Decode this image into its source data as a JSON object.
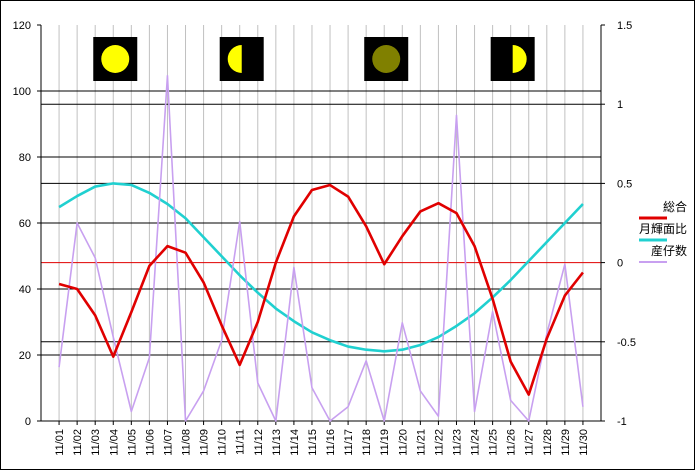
{
  "chart_data": {
    "type": "line",
    "categories": [
      "11/01",
      "11/02",
      "11/03",
      "11/04",
      "11/05",
      "11/06",
      "11/07",
      "11/08",
      "11/09",
      "11/10",
      "11/11",
      "11/12",
      "11/13",
      "11/14",
      "11/15",
      "11/16",
      "11/17",
      "11/18",
      "11/19",
      "11/20",
      "11/21",
      "11/22",
      "11/23",
      "11/24",
      "11/25",
      "11/26",
      "11/27",
      "11/28",
      "11/29",
      "11/30"
    ],
    "y_left": {
      "min": 0,
      "max": 120,
      "ticks": [
        0,
        20,
        40,
        60,
        80,
        100,
        120
      ]
    },
    "y_right": {
      "min": -1,
      "max": 1.5,
      "ticks": [
        -1,
        -0.5,
        0,
        0.5,
        1,
        1.5
      ],
      "tick_labels": [
        "-1",
        "-0.5",
        "0",
        "0.5",
        "1",
        "1.5"
      ]
    },
    "series": [
      {
        "name": "総合",
        "axis": "left",
        "color": "#e00000",
        "values": [
          41.5,
          40,
          32,
          19.5,
          33,
          47,
          53,
          51,
          42,
          29,
          17,
          30,
          48,
          62,
          70,
          71.5,
          68,
          59,
          47.5,
          56,
          63.5,
          66,
          63,
          53,
          37,
          18,
          8,
          25,
          38,
          45
        ]
      },
      {
        "name": "月輝面比",
        "axis": "right",
        "color": "#20d0d0",
        "values": [
          0.35,
          0.42,
          0.48,
          0.5,
          0.49,
          0.44,
          0.37,
          0.28,
          0.16,
          0.04,
          -0.08,
          -0.19,
          -0.29,
          -0.37,
          -0.44,
          -0.49,
          -0.53,
          -0.55,
          -0.56,
          -0.55,
          -0.52,
          -0.47,
          -0.4,
          -0.32,
          -0.22,
          -0.11,
          0.01,
          0.13,
          0.25,
          0.37
        ]
      },
      {
        "name": "産仔数",
        "axis": "right",
        "color": "#c8a0f0",
        "values": [
          -0.66,
          0.25,
          0.03,
          -0.47,
          -0.94,
          -0.6,
          1.18,
          -1.0,
          -0.81,
          -0.49,
          0.26,
          -0.76,
          -1.0,
          -0.03,
          -0.79,
          -1.0,
          -0.91,
          -0.62,
          -1.0,
          -0.38,
          -0.81,
          -0.97,
          0.93,
          -0.94,
          -0.31,
          -0.87,
          -1.0,
          -0.45,
          -0.01,
          -0.91
        ]
      }
    ],
    "horizontal_lines_left": [
      20,
      40,
      60,
      80,
      100
    ],
    "horizontal_lines_right": [
      -0.5,
      0.5,
      1.0
    ],
    "zero_line_right": {
      "value": 0,
      "color": "#e00000"
    },
    "moon_icons": [
      {
        "name": "full-moon-icon",
        "day": "11/04",
        "phase": "full",
        "color": "#ffff00"
      },
      {
        "name": "first-quarter-moon-icon",
        "day": "11/11",
        "phase": "half-right-dark",
        "color": "#ffff00"
      },
      {
        "name": "new-moon-icon",
        "day": "11/19",
        "phase": "new",
        "color": "#808000"
      },
      {
        "name": "last-quarter-moon-icon",
        "day": "11/26",
        "phase": "half-left-dark",
        "color": "#ffff00"
      }
    ],
    "legend": {
      "position": "right",
      "entries": [
        "総合",
        "月輝面比",
        "産仔数"
      ]
    },
    "grid": {
      "vertical": true,
      "color": "#c0c0c0"
    }
  }
}
